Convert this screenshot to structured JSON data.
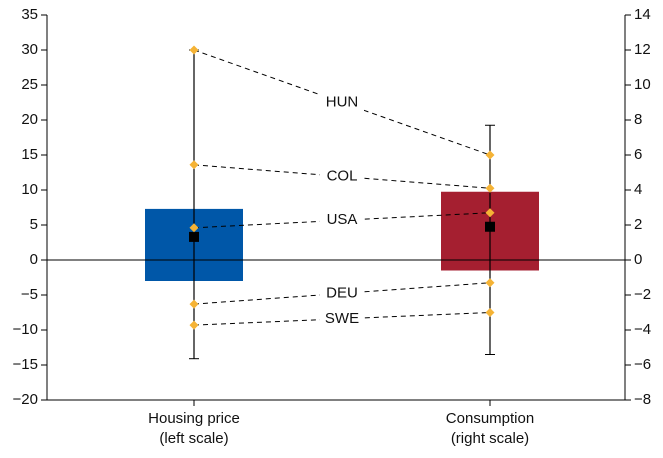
{
  "chart_data": {
    "type": "box",
    "categories": [
      "Housing price",
      "Consumption"
    ],
    "category_notes": [
      "(left scale)",
      "(right scale)"
    ],
    "boxes": [
      {
        "axis": "y",
        "color": "#0057a8",
        "q1": -3,
        "q3": 7.3,
        "whisker_low": -14.1,
        "whisker_high": 30,
        "mean": 3.3
      },
      {
        "axis": "y2",
        "color": "#a51f30",
        "q1": -0.6,
        "q3": 3.9,
        "whisker_low": -5.4,
        "whisker_high": 7.7,
        "mean": 1.9
      }
    ],
    "marker_color": "#f5b335",
    "mean_color": "#000000",
    "countries": [
      {
        "name": "HUN",
        "values": [
          30,
          6.0
        ]
      },
      {
        "name": "COL",
        "values": [
          13.6,
          4.1
        ]
      },
      {
        "name": "USA",
        "values": [
          4.6,
          2.7
        ]
      },
      {
        "name": "DEU",
        "values": [
          -6.3,
          -1.3
        ]
      },
      {
        "name": "SWE",
        "values": [
          -9.3,
          -3.0
        ]
      }
    ],
    "ylim": [
      -20,
      35
    ],
    "yticks": [
      {
        "value": -20,
        "label": "−20"
      },
      {
        "value": -15,
        "label": "−15"
      },
      {
        "value": -10,
        "label": "−10"
      },
      {
        "value": -5,
        "label": "−5"
      },
      0,
      5,
      10,
      15,
      20,
      25,
      30,
      35
    ],
    "y2lim": [
      -8,
      14
    ],
    "y2ticks": [
      {
        "value": -8,
        "label": "−8"
      },
      {
        "value": -6,
        "label": "−6"
      },
      {
        "value": -4,
        "label": "−4"
      },
      {
        "value": -2,
        "label": "−2"
      },
      0,
      2,
      4,
      6,
      8,
      10,
      12,
      14
    ]
  }
}
